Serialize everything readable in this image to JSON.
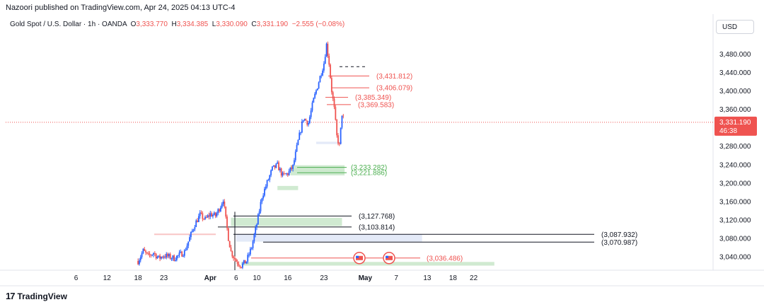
{
  "header": {
    "published": "Nazoori published on TradingView.com, Apr 24, 2025 04:13 UTC-4"
  },
  "legend": {
    "symbol": "Gold Spot / U.S. Dollar · 1h · OANDA",
    "o_label": "O",
    "o_value": "3,333.770",
    "h_label": "H",
    "h_value": "3,334.385",
    "l_label": "L",
    "l_value": "3,330.090",
    "c_label": "C",
    "c_value": "3,331.190",
    "change": "−2.555 (−0.08%)"
  },
  "currency": "USD",
  "price_badge": {
    "price": "3,331.190",
    "countdown": "46:38"
  },
  "brand": {
    "logo": "17",
    "name": "TradingView"
  },
  "colors": {
    "up": "#2962ff",
    "down": "#ef5350",
    "resistance": "#ef5350",
    "support": "#4caf50",
    "zone_green": "#c8e6c9",
    "zone_blue": "#dfe6f7",
    "black_line": "#131722",
    "grid": "#f0f3fa"
  },
  "chart_data": {
    "type": "candlestick",
    "ylim": [
      3010,
      3520
    ],
    "y_ticks": [
      "3,040.000",
      "3,080.000",
      "3,120.000",
      "3,160.000",
      "3,200.000",
      "3,240.000",
      "3,280.000",
      "3,360.000",
      "3,400.000",
      "3,440.000",
      "3,480.000"
    ],
    "y_tick_values": [
      3040,
      3080,
      3120,
      3160,
      3200,
      3240,
      3280,
      3360,
      3400,
      3440,
      3480
    ],
    "x_ticks": [
      "6",
      "12",
      "18",
      "23",
      "Apr",
      "6",
      "10",
      "16",
      "23",
      "May",
      "7",
      "13",
      "18",
      "22"
    ],
    "x_tick_days": [
      -25,
      -19,
      -13,
      -8,
      1,
      6,
      10,
      16,
      23,
      31,
      37,
      43,
      48,
      52
    ],
    "current_price": 3331.19,
    "price_path": [
      [
        -13,
        3030
      ],
      [
        -12,
        3052
      ],
      [
        -11,
        3040
      ],
      [
        -10,
        3048
      ],
      [
        -9,
        3036
      ],
      [
        -8,
        3042
      ],
      [
        -6,
        3036
      ],
      [
        -4,
        3050
      ],
      [
        -3,
        3080
      ],
      [
        -2,
        3110
      ],
      [
        -1,
        3130
      ],
      [
        0,
        3120
      ],
      [
        1,
        3132
      ],
      [
        2,
        3128
      ],
      [
        3,
        3150
      ],
      [
        3.5,
        3165
      ],
      [
        4,
        3120
      ],
      [
        4.5,
        3080
      ],
      [
        5,
        3050
      ],
      [
        6,
        3030
      ],
      [
        7,
        3020
      ],
      [
        8,
        3030
      ],
      [
        9,
        3060
      ],
      [
        10,
        3110
      ],
      [
        11,
        3170
      ],
      [
        12,
        3200
      ],
      [
        13,
        3230
      ],
      [
        14,
        3238
      ],
      [
        15,
        3215
      ],
      [
        16,
        3220
      ],
      [
        17,
        3235
      ],
      [
        18,
        3290
      ],
      [
        19,
        3340
      ],
      [
        20,
        3330
      ],
      [
        21,
        3380
      ],
      [
        22,
        3420
      ],
      [
        23,
        3460
      ],
      [
        23.5,
        3500
      ],
      [
        24,
        3460
      ],
      [
        24.5,
        3400
      ],
      [
        25,
        3360
      ],
      [
        25.5,
        3300
      ],
      [
        26,
        3280
      ],
      [
        26.5,
        3350
      ],
      [
        27,
        3331
      ]
    ],
    "resistance_levels": [
      {
        "label": "(3,431.812)",
        "value": 3431.812
      },
      {
        "label": "(3,406.079)",
        "value": 3406.079
      },
      {
        "label": "(3,385.349)",
        "value": 3385.349
      },
      {
        "label": "(3,369.583)",
        "value": 3369.583
      }
    ],
    "support_levels": [
      {
        "label": "(3,233.282)",
        "value": 3233.282
      },
      {
        "label": "(3,221.886)",
        "value": 3221.886
      }
    ],
    "black_levels": [
      {
        "label": "(3,127.768)",
        "value": 3127.768
      },
      {
        "label": "(3,103.814)",
        "value": 3103.814
      },
      {
        "label": "(3,087.932)",
        "value": 3087.932
      },
      {
        "label": "(3,070.987)",
        "value": 3070.987
      }
    ],
    "lower_level": {
      "label": "(3,036.486)",
      "value": 3036.486
    }
  }
}
